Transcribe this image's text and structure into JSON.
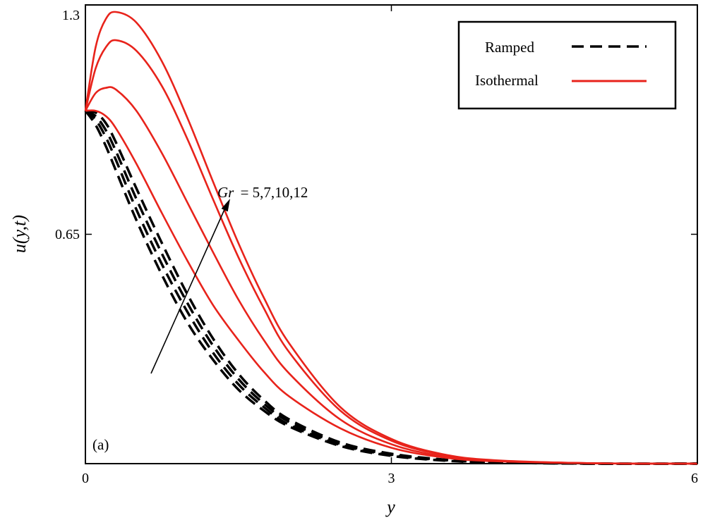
{
  "chart_data": {
    "type": "line",
    "panel_label": "(a)",
    "xlabel": "y",
    "ylabel": "u(y,t)",
    "xlim": [
      0,
      6
    ],
    "ylim": [
      0,
      1.3
    ],
    "xticks": [
      0,
      3,
      6
    ],
    "yticks": [
      0.65,
      1.3
    ],
    "xtick_labels": [
      "0",
      "3",
      "6"
    ],
    "ytick_labels": [
      "0.65",
      "1.3"
    ],
    "legend": {
      "placement": "top-right",
      "entries": [
        {
          "label": "Ramped",
          "style": "dashed",
          "color": "#000000"
        },
        {
          "label": "Isothermal",
          "style": "solid",
          "color": "#e8231b"
        }
      ]
    },
    "annotation": {
      "text_var": "Gr",
      "text_values": "= 5,7,10,12"
    },
    "x": [
      0,
      0.1,
      0.2,
      0.3,
      0.5,
      0.75,
      1.0,
      1.25,
      1.5,
      1.75,
      2.0,
      2.5,
      3.0,
      3.5,
      4.0,
      5.0,
      6.0
    ],
    "series": [
      {
        "name": "Isothermal, Gr=5",
        "group": "Isothermal",
        "values": [
          1.0,
          1.0,
          0.985,
          0.95,
          0.85,
          0.71,
          0.575,
          0.45,
          0.35,
          0.26,
          0.19,
          0.1,
          0.045,
          0.018,
          0.007,
          0.001,
          0.0
        ]
      },
      {
        "name": "Isothermal, Gr=7",
        "group": "Isothermal",
        "values": [
          1.0,
          1.05,
          1.065,
          1.06,
          1.0,
          0.88,
          0.74,
          0.6,
          0.465,
          0.35,
          0.255,
          0.125,
          0.055,
          0.021,
          0.008,
          0.001,
          0.0
        ]
      },
      {
        "name": "Isothermal, Gr=10",
        "group": "Isothermal",
        "values": [
          1.0,
          1.12,
          1.18,
          1.2,
          1.17,
          1.07,
          0.92,
          0.75,
          0.585,
          0.44,
          0.315,
          0.15,
          0.065,
          0.025,
          0.009,
          0.001,
          0.0
        ]
      },
      {
        "name": "Isothermal, Gr=12",
        "group": "Isothermal",
        "values": [
          1.0,
          1.18,
          1.26,
          1.28,
          1.25,
          1.14,
          0.98,
          0.8,
          0.625,
          0.47,
          0.34,
          0.16,
          0.07,
          0.027,
          0.01,
          0.001,
          0.0
        ]
      },
      {
        "name": "Ramped, Gr=5",
        "group": "Ramped",
        "values": [
          1.0,
          0.96,
          0.9,
          0.83,
          0.69,
          0.535,
          0.4,
          0.295,
          0.21,
          0.15,
          0.105,
          0.05,
          0.022,
          0.009,
          0.003,
          0.0,
          0.0
        ]
      },
      {
        "name": "Ramped, Gr=7",
        "group": "Ramped",
        "values": [
          1.0,
          0.975,
          0.925,
          0.86,
          0.72,
          0.565,
          0.43,
          0.315,
          0.225,
          0.16,
          0.11,
          0.053,
          0.024,
          0.01,
          0.004,
          0.0,
          0.0
        ]
      },
      {
        "name": "Ramped, Gr=10",
        "group": "Ramped",
        "values": [
          1.0,
          0.985,
          0.945,
          0.885,
          0.75,
          0.595,
          0.455,
          0.335,
          0.24,
          0.17,
          0.118,
          0.056,
          0.026,
          0.011,
          0.004,
          0.0,
          0.0
        ]
      },
      {
        "name": "Ramped, Gr=12",
        "group": "Ramped",
        "values": [
          1.0,
          0.995,
          0.965,
          0.91,
          0.78,
          0.625,
          0.48,
          0.355,
          0.255,
          0.18,
          0.125,
          0.06,
          0.028,
          0.012,
          0.005,
          0.0,
          0.0
        ]
      }
    ]
  }
}
